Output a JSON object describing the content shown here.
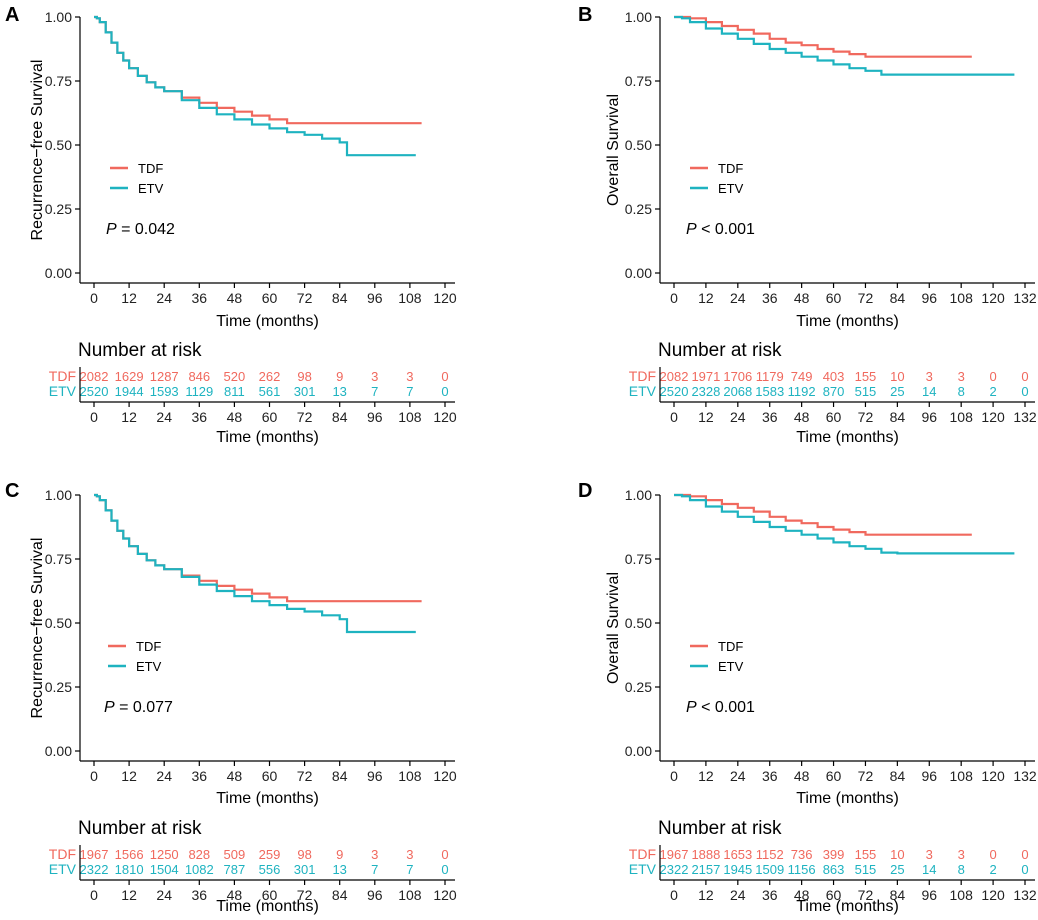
{
  "colors": {
    "tdf": "#F0695E",
    "etv": "#1EB3C0",
    "axis": "#000000"
  },
  "chart_data": [
    {
      "panel": "A",
      "type": "line",
      "ylabel": "Recurrence−free Survival",
      "xlabel": "Time (months)",
      "ylim": [
        0,
        1
      ],
      "yticks": [
        "0.00",
        "0.25",
        "0.50",
        "0.75",
        "1.00"
      ],
      "xticks": [
        "0",
        "12",
        "24",
        "36",
        "48",
        "60",
        "72",
        "84",
        "96",
        "108",
        "120"
      ],
      "xlim": [
        0,
        120
      ],
      "legend": [
        "TDF",
        "ETV"
      ],
      "legend_position": "lower-left",
      "pvalue": {
        "label": "P",
        "text": " = 0.042"
      },
      "series": [
        {
          "name": "TDF",
          "x": [
            0,
            1,
            2,
            4,
            6,
            8,
            10,
            12,
            15,
            18,
            21,
            24,
            30,
            36,
            42,
            48,
            54,
            60,
            66,
            72,
            84,
            96,
            108,
            112
          ],
          "values": [
            1,
            0.995,
            0.98,
            0.94,
            0.9,
            0.86,
            0.83,
            0.8,
            0.77,
            0.745,
            0.725,
            0.71,
            0.685,
            0.665,
            0.645,
            0.63,
            0.615,
            0.6,
            0.585,
            0.585,
            0.585,
            0.585,
            0.585,
            0.585
          ]
        },
        {
          "name": "ETV",
          "x": [
            0,
            1,
            2,
            4,
            6,
            8,
            10,
            12,
            15,
            18,
            21,
            24,
            30,
            36,
            42,
            48,
            54,
            60,
            66,
            72,
            78,
            84,
            86,
            86.5,
            96,
            108,
            110
          ],
          "values": [
            1,
            0.995,
            0.98,
            0.94,
            0.9,
            0.86,
            0.83,
            0.8,
            0.77,
            0.745,
            0.725,
            0.71,
            0.675,
            0.645,
            0.62,
            0.6,
            0.58,
            0.565,
            0.55,
            0.54,
            0.525,
            0.51,
            0.51,
            0.46,
            0.46,
            0.46,
            0.46
          ]
        }
      ],
      "risk_table": {
        "title": "Number at risk",
        "xlabel": "Time (months)",
        "rows": [
          {
            "label": "TDF",
            "values": [
              "2082",
              "1629",
              "1287",
              "846",
              "520",
              "262",
              "98",
              "9",
              "3",
              "3",
              "0"
            ]
          },
          {
            "label": "ETV",
            "values": [
              "2520",
              "1944",
              "1593",
              "1129",
              "811",
              "561",
              "301",
              "13",
              "7",
              "7",
              "0"
            ]
          }
        ]
      }
    },
    {
      "panel": "B",
      "type": "line",
      "ylabel": "Overall Survival",
      "xlabel": "Time (months)",
      "ylim": [
        0,
        1
      ],
      "yticks": [
        "0.00",
        "0.25",
        "0.50",
        "0.75",
        "1.00"
      ],
      "xticks": [
        "0",
        "12",
        "24",
        "36",
        "48",
        "60",
        "72",
        "84",
        "96",
        "108",
        "120",
        "132"
      ],
      "xlim": [
        0,
        132
      ],
      "legend": [
        "TDF",
        "ETV"
      ],
      "legend_position": "lower-left",
      "pvalue": {
        "label": "P",
        "text": " < 0.001"
      },
      "series": [
        {
          "name": "TDF",
          "x": [
            0,
            3,
            6,
            12,
            18,
            24,
            30,
            36,
            42,
            48,
            54,
            60,
            66,
            72,
            84,
            96,
            108,
            112
          ],
          "values": [
            1,
            1,
            0.995,
            0.98,
            0.965,
            0.95,
            0.935,
            0.915,
            0.9,
            0.89,
            0.875,
            0.865,
            0.855,
            0.845,
            0.845,
            0.845,
            0.845,
            0.845
          ]
        },
        {
          "name": "ETV",
          "x": [
            0,
            3,
            6,
            12,
            18,
            24,
            30,
            36,
            42,
            48,
            54,
            60,
            66,
            72,
            78,
            84,
            96,
            108,
            120,
            128
          ],
          "values": [
            1,
            0.995,
            0.98,
            0.955,
            0.935,
            0.915,
            0.895,
            0.875,
            0.86,
            0.845,
            0.83,
            0.815,
            0.8,
            0.79,
            0.775,
            0.775,
            0.775,
            0.775,
            0.775,
            0.775
          ]
        }
      ],
      "risk_table": {
        "title": "Number at risk",
        "xlabel": "Time (months)",
        "rows": [
          {
            "label": "TDF",
            "values": [
              "2082",
              "1971",
              "1706",
              "1179",
              "749",
              "403",
              "155",
              "10",
              "3",
              "3",
              "0",
              "0"
            ]
          },
          {
            "label": "ETV",
            "values": [
              "2520",
              "2328",
              "2068",
              "1583",
              "1192",
              "870",
              "515",
              "25",
              "14",
              "8",
              "2",
              "0"
            ]
          }
        ]
      }
    },
    {
      "panel": "C",
      "type": "line",
      "ylabel": "Recurrence−free Survival",
      "xlabel": "Time (months)",
      "ylim": [
        0,
        1
      ],
      "yticks": [
        "0.00",
        "0.25",
        "0.50",
        "0.75",
        "1.00"
      ],
      "xticks": [
        "0",
        "12",
        "24",
        "36",
        "48",
        "60",
        "72",
        "84",
        "96",
        "108",
        "120"
      ],
      "xlim": [
        0,
        120
      ],
      "legend": [
        "TDF",
        "ETV"
      ],
      "legend_position": "lower-left",
      "pvalue": {
        "label": "P",
        "text": " = 0.077"
      },
      "series": [
        {
          "name": "TDF",
          "x": [
            0,
            1,
            2,
            4,
            6,
            8,
            10,
            12,
            15,
            18,
            21,
            24,
            30,
            36,
            42,
            48,
            54,
            60,
            66,
            72,
            84,
            96,
            108,
            112
          ],
          "values": [
            1,
            0.995,
            0.98,
            0.94,
            0.9,
            0.86,
            0.83,
            0.8,
            0.77,
            0.745,
            0.725,
            0.71,
            0.685,
            0.665,
            0.645,
            0.63,
            0.615,
            0.6,
            0.585,
            0.585,
            0.585,
            0.585,
            0.585,
            0.585
          ]
        },
        {
          "name": "ETV",
          "x": [
            0,
            1,
            2,
            4,
            6,
            8,
            10,
            12,
            15,
            18,
            21,
            24,
            30,
            36,
            42,
            48,
            54,
            60,
            66,
            72,
            78,
            84,
            86,
            86.5,
            96,
            108,
            110
          ],
          "values": [
            1,
            0.995,
            0.98,
            0.94,
            0.9,
            0.86,
            0.83,
            0.8,
            0.77,
            0.745,
            0.725,
            0.71,
            0.68,
            0.65,
            0.625,
            0.605,
            0.585,
            0.57,
            0.555,
            0.545,
            0.53,
            0.515,
            0.515,
            0.465,
            0.465,
            0.465,
            0.465
          ]
        }
      ],
      "risk_table": {
        "title": "Number at risk",
        "xlabel": "Time (months)",
        "rows": [
          {
            "label": "TDF",
            "values": [
              "1967",
              "1566",
              "1250",
              "828",
              "509",
              "259",
              "98",
              "9",
              "3",
              "3",
              "0"
            ]
          },
          {
            "label": "ETV",
            "values": [
              "2322",
              "1810",
              "1504",
              "1082",
              "787",
              "556",
              "301",
              "13",
              "7",
              "7",
              "0"
            ]
          }
        ]
      }
    },
    {
      "panel": "D",
      "type": "line",
      "ylabel": "Overall Survival",
      "xlabel": "Time (months)",
      "ylim": [
        0,
        1
      ],
      "yticks": [
        "0.00",
        "0.25",
        "0.50",
        "0.75",
        "1.00"
      ],
      "xticks": [
        "0",
        "12",
        "24",
        "36",
        "48",
        "60",
        "72",
        "84",
        "96",
        "108",
        "120",
        "132"
      ],
      "xlim": [
        0,
        132
      ],
      "legend": [
        "TDF",
        "ETV"
      ],
      "legend_position": "lower-left",
      "pvalue": {
        "label": "P",
        "text": " < 0.001"
      },
      "series": [
        {
          "name": "TDF",
          "x": [
            0,
            3,
            6,
            12,
            18,
            24,
            30,
            36,
            42,
            48,
            54,
            60,
            66,
            72,
            84,
            96,
            108,
            112
          ],
          "values": [
            1,
            1,
            0.995,
            0.98,
            0.965,
            0.95,
            0.935,
            0.915,
            0.9,
            0.89,
            0.875,
            0.865,
            0.855,
            0.845,
            0.845,
            0.845,
            0.845,
            0.845
          ]
        },
        {
          "name": "ETV",
          "x": [
            0,
            3,
            6,
            12,
            18,
            24,
            30,
            36,
            42,
            48,
            54,
            60,
            66,
            72,
            78,
            84,
            96,
            108,
            120,
            128
          ],
          "values": [
            1,
            0.995,
            0.98,
            0.955,
            0.935,
            0.915,
            0.895,
            0.875,
            0.86,
            0.845,
            0.83,
            0.815,
            0.8,
            0.79,
            0.775,
            0.772,
            0.772,
            0.772,
            0.772,
            0.772
          ]
        }
      ],
      "risk_table": {
        "title": "Number at risk",
        "xlabel": "Time (months)",
        "rows": [
          {
            "label": "TDF",
            "values": [
              "1967",
              "1888",
              "1653",
              "1152",
              "736",
              "399",
              "155",
              "10",
              "3",
              "3",
              "0",
              "0"
            ]
          },
          {
            "label": "ETV",
            "values": [
              "2322",
              "2157",
              "1945",
              "1509",
              "1156",
              "863",
              "515",
              "25",
              "14",
              "8",
              "2",
              "0"
            ]
          }
        ]
      }
    }
  ]
}
